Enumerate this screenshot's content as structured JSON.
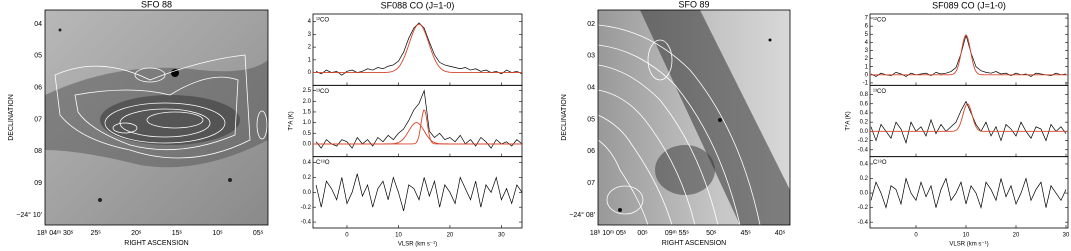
{
  "chart_data": [
    {
      "type": "image",
      "title": "SFO 88",
      "xlabel": "RIGHT ASCENSION",
      "ylabel": "DECLINATION",
      "ra_labels": [
        "18ʰ 04ᵐ 30ˢ",
        "25ˢ",
        "20ˢ",
        "15ˢ",
        "10ˢ",
        "05ˢ"
      ],
      "dec_labels": [
        "04",
        "05",
        "06",
        "07",
        "08",
        "09",
        "−24° 10′"
      ]
    },
    {
      "type": "spectra",
      "title": "SF088 CO (J=1-0)",
      "xlabel": "VLSR (km s⁻¹)",
      "ylabel": "T*A (K)",
      "xlim": [
        -6.6,
        34
      ],
      "xticks": [
        0,
        10,
        20,
        30
      ],
      "line_color": "#000000",
      "fit_color": "#d8442a",
      "x": [
        -6,
        -5,
        -4,
        -3,
        -2,
        -1,
        0,
        1,
        2,
        3,
        4,
        5,
        6,
        7,
        8,
        9,
        10,
        11,
        12,
        13,
        14,
        15,
        16,
        17,
        18,
        19,
        20,
        21,
        22,
        23,
        24,
        25,
        26,
        27,
        28,
        29,
        30,
        31,
        32,
        33,
        34
      ],
      "panels": [
        {
          "label": "¹²CO",
          "ylim": [
            -1,
            4.6
          ],
          "yticks": [
            0,
            1,
            2,
            3,
            4
          ],
          "values": [
            0.1,
            -0.1,
            0.2,
            0.0,
            0.1,
            -0.2,
            0.1,
            0.2,
            0.0,
            0.1,
            0.3,
            0.2,
            0.4,
            0.3,
            0.5,
            0.6,
            0.9,
            1.6,
            2.7,
            3.5,
            3.9,
            3.5,
            2.4,
            1.4,
            0.8,
            0.6,
            0.5,
            0.4,
            0.3,
            0.4,
            0.2,
            0.3,
            0.1,
            0.2,
            0.0,
            0.1,
            -0.1,
            0.2,
            0.0,
            0.1,
            -0.1
          ],
          "fit": [
            {
              "amplitude": 3.8,
              "center": 14,
              "sigma": 1.9
            }
          ]
        },
        {
          "label": "¹³CO",
          "ylim": [
            -0.6,
            2.75
          ],
          "yticks": [
            {
              "value": 0,
              "label": "0.0"
            },
            0.5,
            {
              "value": 1,
              "label": "1.0"
            },
            1.5,
            {
              "value": 2,
              "label": "2.0"
            },
            2.5
          ],
          "values": [
            0.1,
            -0.2,
            0.2,
            0.0,
            -0.1,
            0.2,
            0.1,
            -0.2,
            0.3,
            0.0,
            0.2,
            -0.1,
            0.3,
            0.1,
            0.4,
            0.2,
            0.5,
            0.7,
            1.1,
            1.6,
            1.9,
            2.5,
            0.6,
            0.3,
            0.5,
            0.2,
            0.3,
            0.1,
            0.4,
            0.0,
            0.2,
            -0.1,
            0.3,
            0.1,
            -0.2,
            0.2,
            0.0,
            0.1,
            -0.1,
            0.2,
            0.0
          ],
          "fit": [
            {
              "amplitude": 1.0,
              "center": 13.5,
              "sigma": 1.5
            },
            {
              "amplitude": 1.6,
              "center": 15,
              "sigma": 0.6
            }
          ]
        },
        {
          "label": "C¹⁸O",
          "ylim": [
            -0.48,
            0.48
          ],
          "yticks": [
            -0.4,
            -0.2,
            {
              "value": 0,
              "label": "0.0"
            },
            0.2,
            0.4
          ],
          "values": [
            0.1,
            -0.2,
            0.15,
            0.05,
            -0.1,
            0.2,
            -0.15,
            0.0,
            0.25,
            -0.05,
            0.1,
            -0.2,
            0.05,
            0.15,
            -0.1,
            0.2,
            0.0,
            -0.25,
            0.1,
            0.05,
            -0.1,
            0.2,
            -0.05,
            0.15,
            -0.2,
            0.1,
            0.0,
            -0.15,
            0.2,
            0.05,
            -0.1,
            0.15,
            -0.2,
            0.1,
            0.0,
            0.2,
            -0.1,
            0.05,
            -0.15,
            0.1,
            0.0
          ]
        }
      ]
    },
    {
      "type": "image",
      "title": "SFO 89",
      "xlabel": "RIGHT ASCENSION",
      "ylabel": "DECLINATION",
      "ra_labels": [
        "18ʰ 10ᵐ 05ˢ",
        "00ˢ",
        "09ᵐ 55ˢ",
        "50ˢ",
        "45ˢ",
        "40ˢ"
      ],
      "dec_labels": [
        "02",
        "03",
        "04",
        "05",
        "06",
        "07",
        "−24° 08′"
      ]
    },
    {
      "type": "spectra",
      "title": "SF089 CO (J=1-0)",
      "xlabel": "VLSR (km s⁻¹)",
      "ylabel": "T*A (K)",
      "xlim": [
        -9.2,
        30.4
      ],
      "xticks": [
        0,
        10,
        20,
        30
      ],
      "line_color": "#000000",
      "fit_color": "#d8442a",
      "x": [
        -9,
        -8,
        -7,
        -6,
        -5,
        -4,
        -3,
        -2,
        -1,
        0,
        1,
        2,
        3,
        4,
        5,
        6,
        7,
        8,
        9,
        10,
        11,
        12,
        13,
        14,
        15,
        16,
        17,
        18,
        19,
        20,
        21,
        22,
        23,
        24,
        25,
        26,
        27,
        28,
        29,
        30
      ],
      "panels": [
        {
          "label": "¹²CO",
          "ylim": [
            -1.3,
            7.5
          ],
          "yticks": [
            -1,
            0,
            1,
            2,
            3,
            4,
            5,
            6,
            7
          ],
          "values": [
            0.1,
            -0.2,
            0.2,
            0.0,
            -0.1,
            0.3,
            0.1,
            -0.2,
            0.2,
            0.0,
            0.1,
            0.2,
            -0.1,
            0.3,
            0.1,
            0.2,
            0.4,
            0.9,
            2.6,
            4.9,
            2.7,
            1.0,
            0.5,
            0.3,
            0.2,
            0.4,
            0.1,
            0.2,
            -0.1,
            0.2,
            0.0,
            0.1,
            -0.2,
            0.2,
            0.1,
            0.0,
            -0.1,
            0.2,
            0.0,
            0.1
          ],
          "fit": [
            {
              "amplitude": 4.9,
              "center": 10,
              "sigma": 0.9
            }
          ]
        },
        {
          "label": "¹³CO",
          "ylim": [
            -0.55,
            1.0
          ],
          "yticks": [
            -0.4,
            -0.2,
            {
              "value": 0,
              "label": "0.0"
            },
            0.2,
            0.4,
            0.6,
            0.8
          ],
          "values": [
            0.1,
            -0.2,
            0.15,
            0.0,
            -0.15,
            0.2,
            0.05,
            -0.25,
            0.2,
            0.0,
            0.1,
            -0.1,
            0.25,
            -0.05,
            0.15,
            0.0,
            0.1,
            0.2,
            0.45,
            0.65,
            0.4,
            0.15,
            0.0,
            0.2,
            -0.1,
            0.1,
            -0.2,
            0.15,
            0.05,
            -0.1,
            0.2,
            0.0,
            -0.15,
            0.1,
            0.05,
            -0.2,
            0.15,
            0.0,
            0.1,
            -0.05
          ],
          "fit": [
            {
              "amplitude": 0.6,
              "center": 10.3,
              "sigma": 0.9
            }
          ]
        },
        {
          "label": "C¹⁸O",
          "ylim": [
            -0.48,
            0.5
          ],
          "yticks": [
            -0.4,
            -0.2,
            {
              "value": 0,
              "label": "0.0"
            },
            0.2,
            0.4
          ],
          "values": [
            -0.1,
            0.15,
            0.0,
            -0.2,
            0.1,
            0.05,
            -0.15,
            0.2,
            0.0,
            -0.1,
            0.15,
            -0.05,
            0.1,
            -0.2,
            0.05,
            0.2,
            -0.1,
            0.0,
            0.15,
            -0.15,
            0.1,
            0.0,
            -0.2,
            0.15,
            0.05,
            -0.1,
            0.2,
            -0.05,
            0.1,
            -0.15,
            0.0,
            0.2,
            -0.1,
            0.05,
            0.15,
            -0.2,
            0.1,
            0.0,
            -0.1,
            0.05
          ]
        }
      ]
    }
  ]
}
